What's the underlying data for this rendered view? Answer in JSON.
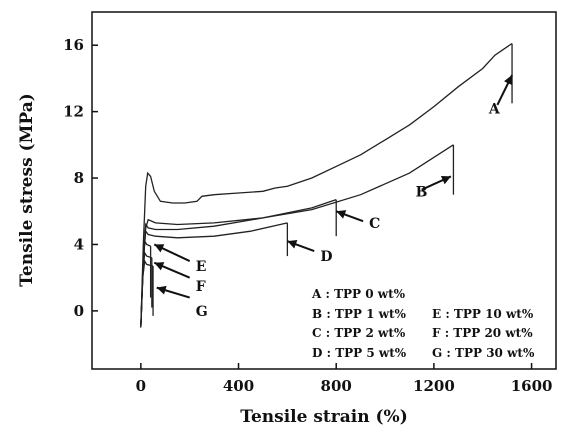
{
  "chart_data": {
    "type": "line",
    "xlabel": "Tensile strain (%)",
    "ylabel": "Tensile stress (MPa)",
    "xlim": [
      -200,
      1700
    ],
    "ylim": [
      -3.5,
      18
    ],
    "xticks": [
      0,
      400,
      800,
      1200,
      1600
    ],
    "yticks": [
      0,
      4,
      8,
      12,
      16
    ],
    "xtick_labels": [
      "0",
      "400",
      "800",
      "1200",
      "1600"
    ],
    "ytick_labels": [
      "0",
      "4",
      "8",
      "12",
      "16"
    ],
    "grid": false,
    "line_color": "#222222",
    "series": [
      {
        "name": "A",
        "points": [
          [
            0,
            -1
          ],
          [
            10,
            4
          ],
          [
            20,
            7.5
          ],
          [
            28,
            8.3
          ],
          [
            40,
            8.1
          ],
          [
            55,
            7.2
          ],
          [
            80,
            6.6
          ],
          [
            130,
            6.5
          ],
          [
            180,
            6.5
          ],
          [
            230,
            6.6
          ],
          [
            250,
            6.9
          ],
          [
            300,
            7.0
          ],
          [
            400,
            7.1
          ],
          [
            500,
            7.2
          ],
          [
            550,
            7.4
          ],
          [
            600,
            7.5
          ],
          [
            700,
            8.0
          ],
          [
            800,
            8.7
          ],
          [
            900,
            9.4
          ],
          [
            1000,
            10.3
          ],
          [
            1100,
            11.2
          ],
          [
            1200,
            12.3
          ],
          [
            1300,
            13.5
          ],
          [
            1400,
            14.6
          ],
          [
            1450,
            15.4
          ],
          [
            1520,
            16.1
          ]
        ],
        "break_x": 1520,
        "break_drop_to": 12.5
      },
      {
        "name": "B",
        "points": [
          [
            0,
            -1
          ],
          [
            10,
            3
          ],
          [
            20,
            5
          ],
          [
            30,
            5.5
          ],
          [
            60,
            5.3
          ],
          [
            150,
            5.2
          ],
          [
            300,
            5.3
          ],
          [
            500,
            5.6
          ],
          [
            700,
            6.1
          ],
          [
            900,
            7.0
          ],
          [
            1100,
            8.3
          ],
          [
            1280,
            10.0
          ]
        ],
        "break_x": 1280,
        "break_drop_to": 7.0
      },
      {
        "name": "C",
        "points": [
          [
            0,
            -1
          ],
          [
            10,
            3
          ],
          [
            20,
            5.2
          ],
          [
            30,
            5.0
          ],
          [
            60,
            4.9
          ],
          [
            150,
            4.9
          ],
          [
            300,
            5.1
          ],
          [
            500,
            5.6
          ],
          [
            700,
            6.2
          ],
          [
            800,
            6.7
          ]
        ],
        "break_x": 800,
        "break_drop_to": 4.5
      },
      {
        "name": "D",
        "points": [
          [
            0,
            -1
          ],
          [
            10,
            3
          ],
          [
            20,
            4.8
          ],
          [
            30,
            4.6
          ],
          [
            60,
            4.5
          ],
          [
            150,
            4.4
          ],
          [
            300,
            4.5
          ],
          [
            450,
            4.8
          ],
          [
            600,
            5.3
          ]
        ],
        "break_x": 600,
        "break_drop_to": 3.3
      },
      {
        "name": "E",
        "points": [
          [
            0,
            -1
          ],
          [
            8,
            2.5
          ],
          [
            16,
            4.2
          ],
          [
            24,
            4.0
          ],
          [
            40,
            3.9
          ]
        ],
        "break_x": 40,
        "break_drop_to": 0.8
      },
      {
        "name": "F",
        "points": [
          [
            0,
            -1
          ],
          [
            8,
            2.2
          ],
          [
            16,
            3.5
          ],
          [
            24,
            3.3
          ],
          [
            45,
            3.2
          ]
        ],
        "break_x": 45,
        "break_drop_to": 0.2
      },
      {
        "name": "G",
        "points": [
          [
            0,
            -1
          ],
          [
            8,
            2
          ],
          [
            16,
            3.0
          ],
          [
            24,
            2.8
          ],
          [
            50,
            2.7
          ]
        ],
        "break_x": 50,
        "break_drop_to": -0.3
      }
    ],
    "series_tags": [
      {
        "label": "A",
        "arrow_from": [
          1460,
          12.4
        ],
        "arrow_to": [
          1520,
          14.2
        ],
        "text_at": [
          1425,
          12.2
        ]
      },
      {
        "label": "B",
        "arrow_from": [
          1150,
          7.3
        ],
        "arrow_to": [
          1270,
          8.1
        ],
        "text_at": [
          1125,
          7.2
        ]
      },
      {
        "label": "C",
        "arrow_from": [
          910,
          5.4
        ],
        "arrow_to": [
          800,
          6.0
        ],
        "text_at": [
          935,
          5.3
        ]
      },
      {
        "label": "D",
        "arrow_from": [
          710,
          3.6
        ],
        "arrow_to": [
          600,
          4.2
        ],
        "text_at": [
          735,
          3.3
        ]
      },
      {
        "label": "E",
        "arrow_from": [
          200,
          3.0
        ],
        "arrow_to": [
          55,
          4.0
        ],
        "text_at": [
          225,
          2.7
        ]
      },
      {
        "label": "F",
        "arrow_from": [
          200,
          2.0
        ],
        "arrow_to": [
          55,
          2.9
        ],
        "text_at": [
          225,
          1.5
        ]
      },
      {
        "label": "G",
        "arrow_from": [
          200,
          0.8
        ],
        "arrow_to": [
          65,
          1.4
        ],
        "text_at": [
          225,
          0.0
        ]
      }
    ],
    "legend": {
      "placement": "bottom-right",
      "entries": [
        "A : TPP 0 wt%",
        "E : TPP 10 wt%",
        "B : TPP 1 wt%",
        "F : TPP 20 wt%",
        "C : TPP 2 wt%",
        "G : TPP 30 wt%",
        "D : TPP 5 wt%"
      ]
    }
  }
}
